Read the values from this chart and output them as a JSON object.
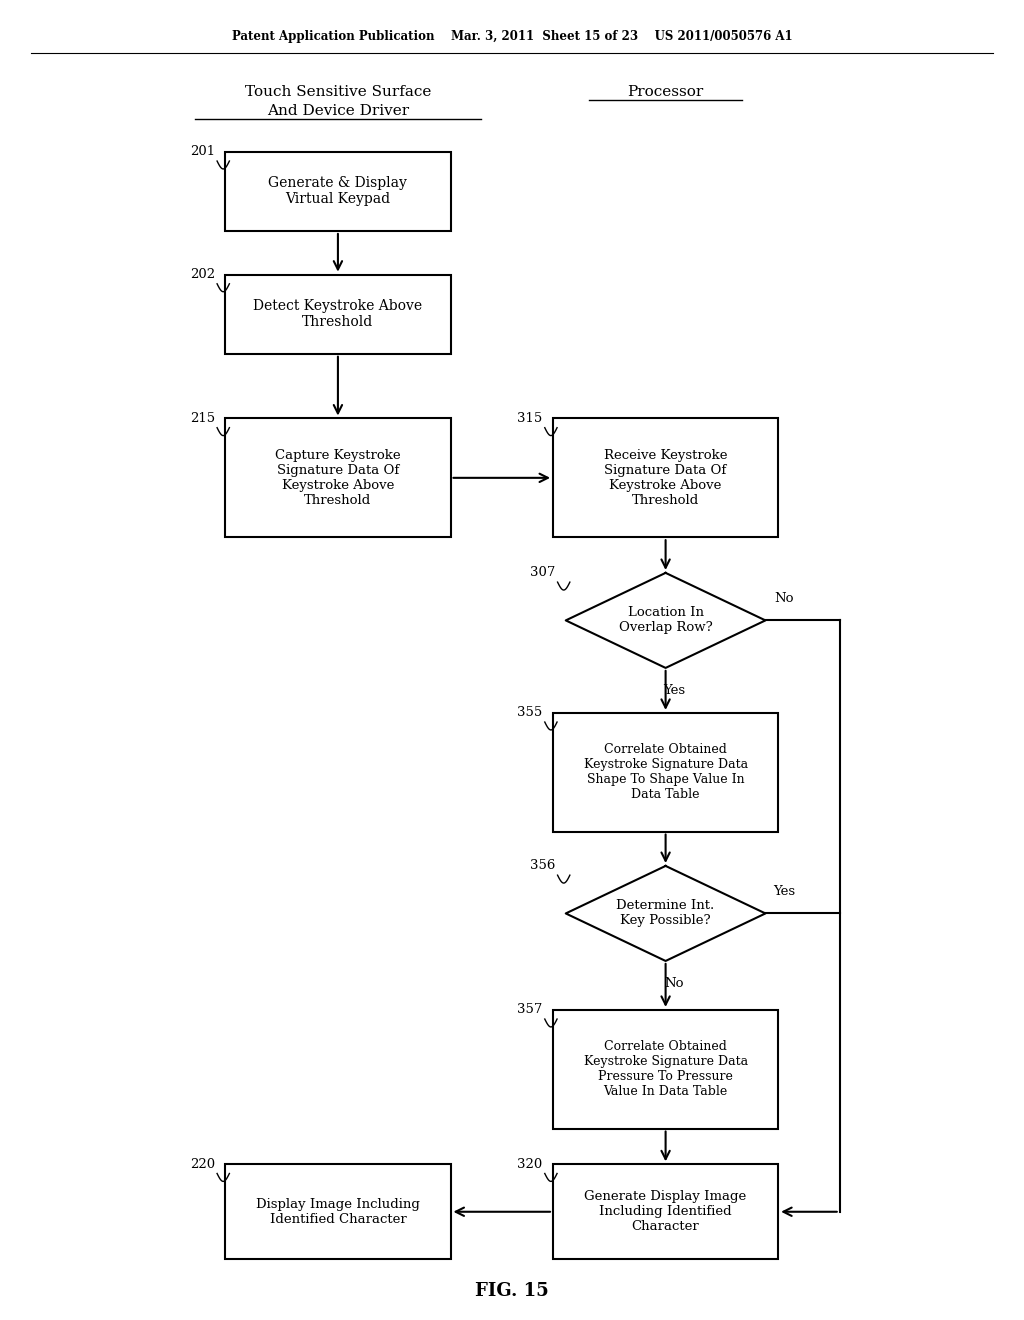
{
  "bg_color": "#ffffff",
  "header_text": "Patent Application Publication    Mar. 3, 2011  Sheet 15 of 23    US 2011/0050576 A1",
  "title_left_line1": "Touch Sensitive Surface",
  "title_left_line2": "And Device Driver",
  "title_right": "Processor",
  "fig_label": "FIG. 15"
}
